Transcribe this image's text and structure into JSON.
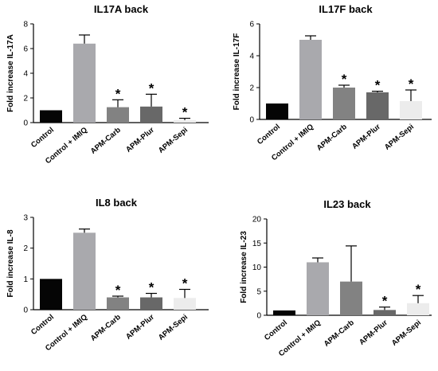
{
  "chart_data": [
    {
      "type": "bar",
      "title": "IL17A back",
      "ylabel": "Fold increase IL-17A",
      "categories": [
        "Control",
        "Control + IMIQ",
        "APM-Carb",
        "APM-Plur",
        "APM-Sepi"
      ],
      "values": [
        1.0,
        6.4,
        1.25,
        1.3,
        0.2
      ],
      "errors": [
        0,
        0.7,
        0.6,
        1.0,
        0.15
      ],
      "significant": [
        false,
        false,
        true,
        true,
        true
      ],
      "ylim": [
        0,
        8
      ],
      "yticks": [
        "0",
        "2",
        "4",
        "6",
        "8"
      ],
      "colors": [
        "#050505",
        "#a9a9ad",
        "#828282",
        "#686868",
        "#ececec"
      ]
    },
    {
      "type": "bar",
      "title": "IL17F back",
      "ylabel": "Fold increase IL-17F",
      "categories": [
        "Control",
        "Control + IMIQ",
        "APM-Carb",
        "APM-Plur",
        "APM-Sepi"
      ],
      "values": [
        1.0,
        5.0,
        2.0,
        1.7,
        1.15
      ],
      "errors": [
        0,
        0.25,
        0.15,
        0.07,
        0.7
      ],
      "significant": [
        false,
        false,
        true,
        true,
        true
      ],
      "ylim": [
        0,
        6
      ],
      "yticks": [
        "0",
        "2",
        "4",
        "6"
      ],
      "colors": [
        "#050505",
        "#a9a9ad",
        "#828282",
        "#686868",
        "#ececec"
      ]
    },
    {
      "type": "bar",
      "title": "IL8 back",
      "ylabel": "Fold increase IL-8",
      "categories": [
        "Control",
        "Control + IMIQ",
        "APM-Carb",
        "APM-Plur",
        "APM-Sepi"
      ],
      "values": [
        1.0,
        2.5,
        0.4,
        0.4,
        0.38
      ],
      "errors": [
        0,
        0.12,
        0.04,
        0.13,
        0.28
      ],
      "significant": [
        false,
        false,
        true,
        true,
        true
      ],
      "ylim": [
        0,
        3
      ],
      "yticks": [
        "0",
        "1",
        "2",
        "3"
      ],
      "colors": [
        "#050505",
        "#a9a9ad",
        "#828282",
        "#686868",
        "#ececec"
      ]
    },
    {
      "type": "bar",
      "title": "IL23 back",
      "ylabel": "Fold increase IL-23",
      "categories": [
        "Control",
        "Control + IMIQ",
        "APM-Carb",
        "APM-Plur",
        "APM-Sepi"
      ],
      "values": [
        1.0,
        11.0,
        7.0,
        1.1,
        2.5
      ],
      "errors": [
        0,
        0.9,
        7.4,
        0.6,
        1.6
      ],
      "significant": [
        false,
        false,
        false,
        true,
        true
      ],
      "ylim": [
        0,
        20
      ],
      "yticks": [
        "0",
        "5",
        "10",
        "15",
        "20"
      ],
      "colors": [
        "#050505",
        "#a9a9ad",
        "#828282",
        "#686868",
        "#ececec"
      ]
    }
  ],
  "marker": "*"
}
